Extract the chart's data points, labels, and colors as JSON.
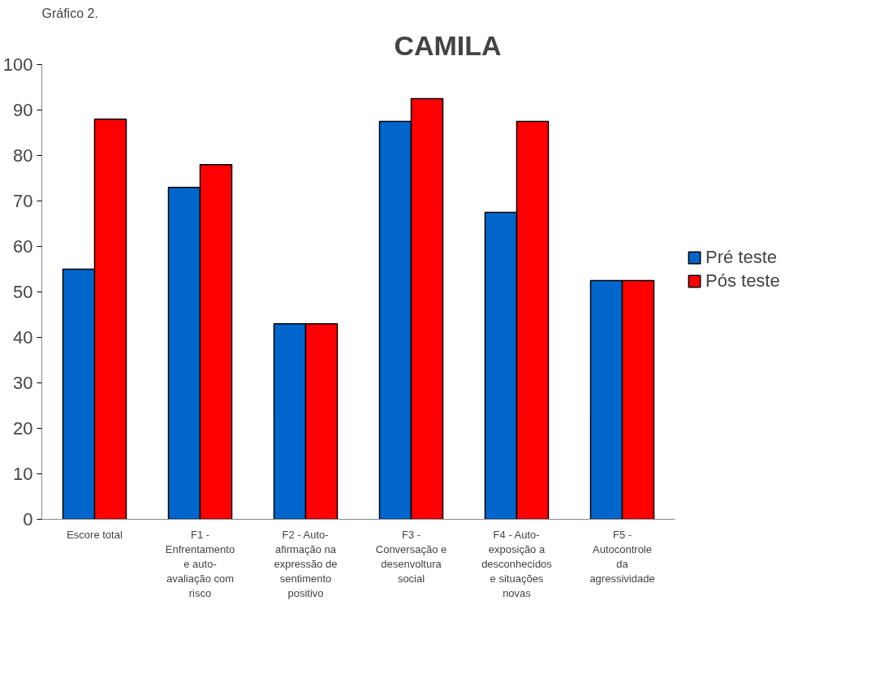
{
  "chart_data": {
    "type": "bar",
    "title": "CAMILA",
    "annotations": [
      "Gráfico 2."
    ],
    "categories": [
      "Escore total",
      "F1 - Enfrentamento e auto-avaliação com risco",
      "F2 - Auto-afirmação na expressão de sentimento positivo",
      "F3 - Conversação e desenvoltura social",
      "F4 - Auto-exposição a desconhecidos e situações novas",
      "F5 - Autocontrole da agressividade"
    ],
    "series": [
      {
        "name": "Pré teste",
        "color": "#0066cc",
        "values": [
          55,
          73,
          43,
          87.5,
          67.5,
          52.5
        ]
      },
      {
        "name": "Pós teste",
        "color": "#ff0000",
        "values": [
          88,
          78,
          43,
          92.5,
          87.5,
          52.5
        ]
      }
    ],
    "ylim": [
      0,
      100
    ],
    "yticks": [
      0,
      10,
      20,
      30,
      40,
      50,
      60,
      70,
      80,
      90,
      100
    ],
    "grid": false,
    "legend": "right"
  }
}
